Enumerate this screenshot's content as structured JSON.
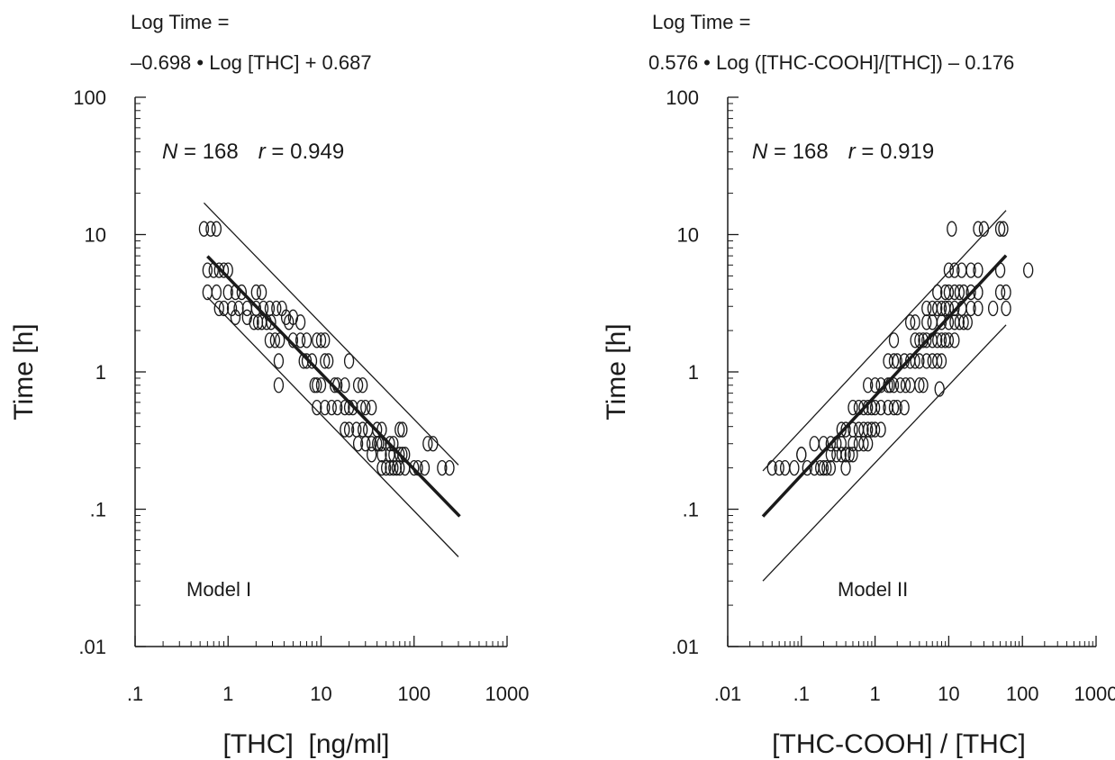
{
  "chart_data": [
    {
      "type": "scatter",
      "panel": "left",
      "equation_line1": "Log Time =",
      "equation_line2": "–0.698 • Log [THC] + 0.687",
      "stat_n_label": "N",
      "stat_n_value": " = 168",
      "stat_r_label": "r",
      "stat_r_value": " = 0.949",
      "model_label": "Model I",
      "xlabel": "[THC]  [ng/ml]",
      "ylabel": "Time [h]",
      "x_scale": "log",
      "y_scale": "log",
      "xlim": [
        0.1,
        1000
      ],
      "ylim": [
        0.01,
        100
      ],
      "x_ticks": [
        {
          "v": 0.1,
          "label": ".1"
        },
        {
          "v": 1,
          "label": "1"
        },
        {
          "v": 10,
          "label": "10"
        },
        {
          "v": 100,
          "label": "100"
        },
        {
          "v": 1000,
          "label": "1000"
        }
      ],
      "y_ticks": [
        {
          "v": 0.01,
          "label": ".01"
        },
        {
          "v": 0.1,
          "label": ".1"
        },
        {
          "v": 1,
          "label": "1"
        },
        {
          "v": 10,
          "label": "10"
        },
        {
          "v": 100,
          "label": "100"
        }
      ],
      "regression": {
        "slope": -0.698,
        "intercept": 0.687,
        "x_range": [
          0.6,
          310
        ]
      },
      "prediction_bands": [
        {
          "name": "upper",
          "x_range": [
            0.55,
            300
          ],
          "y_range": [
            17,
            0.21
          ]
        },
        {
          "name": "lower",
          "x_range": [
            0.6,
            300
          ],
          "y_range": [
            3.5,
            0.045
          ]
        }
      ],
      "points": [
        [
          0.55,
          11
        ],
        [
          0.65,
          11
        ],
        [
          0.75,
          11
        ],
        [
          0.6,
          5.5
        ],
        [
          0.7,
          5.5
        ],
        [
          0.8,
          5.5
        ],
        [
          0.9,
          5.5
        ],
        [
          1.0,
          5.5
        ],
        [
          0.6,
          3.8
        ],
        [
          0.75,
          3.8
        ],
        [
          1.0,
          3.8
        ],
        [
          1.2,
          3.8
        ],
        [
          1.4,
          3.8
        ],
        [
          0.8,
          2.9
        ],
        [
          0.9,
          2.9
        ],
        [
          1.1,
          2.9
        ],
        [
          1.3,
          2.9
        ],
        [
          1.6,
          2.9
        ],
        [
          1.2,
          2.5
        ],
        [
          1.6,
          2.5
        ],
        [
          2.0,
          3.8
        ],
        [
          2.3,
          3.8
        ],
        [
          2.0,
          2.9
        ],
        [
          2.4,
          2.9
        ],
        [
          2.8,
          2.9
        ],
        [
          1.9,
          2.3
        ],
        [
          2.1,
          2.3
        ],
        [
          2.3,
          2.3
        ],
        [
          2.6,
          2.3
        ],
        [
          2.9,
          2.3
        ],
        [
          3.3,
          2.9
        ],
        [
          3.8,
          2.9
        ],
        [
          4.2,
          2.5
        ],
        [
          5.0,
          2.5
        ],
        [
          6.0,
          2.3
        ],
        [
          2.8,
          1.7
        ],
        [
          3.2,
          1.7
        ],
        [
          3.6,
          1.7
        ],
        [
          4.5,
          2.3
        ],
        [
          5.0,
          1.7
        ],
        [
          6.0,
          1.7
        ],
        [
          7.0,
          1.7
        ],
        [
          3.5,
          1.2
        ],
        [
          3.5,
          0.8
        ],
        [
          6.5,
          1.2
        ],
        [
          7.0,
          1.2
        ],
        [
          8.0,
          1.2
        ],
        [
          9.0,
          1.7
        ],
        [
          10.0,
          1.7
        ],
        [
          11.0,
          1.7
        ],
        [
          8.5,
          0.8
        ],
        [
          9.0,
          0.8
        ],
        [
          10.0,
          0.8
        ],
        [
          11.0,
          1.2
        ],
        [
          12.0,
          1.2
        ],
        [
          14.0,
          0.8
        ],
        [
          15.0,
          0.8
        ],
        [
          18.0,
          0.8
        ],
        [
          20.0,
          1.2
        ],
        [
          25.0,
          0.8
        ],
        [
          28.0,
          0.8
        ],
        [
          9.0,
          0.55
        ],
        [
          11.0,
          0.55
        ],
        [
          13.0,
          0.55
        ],
        [
          15.0,
          0.55
        ],
        [
          18.0,
          0.55
        ],
        [
          20.0,
          0.55
        ],
        [
          22.0,
          0.55
        ],
        [
          27.0,
          0.55
        ],
        [
          30.0,
          0.55
        ],
        [
          35.0,
          0.55
        ],
        [
          18.0,
          0.38
        ],
        [
          20.0,
          0.38
        ],
        [
          24.0,
          0.38
        ],
        [
          28.0,
          0.38
        ],
        [
          32.0,
          0.38
        ],
        [
          40.0,
          0.38
        ],
        [
          45.0,
          0.38
        ],
        [
          25.0,
          0.3
        ],
        [
          30.0,
          0.3
        ],
        [
          35.0,
          0.3
        ],
        [
          40.0,
          0.3
        ],
        [
          42.0,
          0.3
        ],
        [
          45.0,
          0.3
        ],
        [
          55.0,
          0.3
        ],
        [
          60.0,
          0.3
        ],
        [
          35.0,
          0.25
        ],
        [
          45.0,
          0.25
        ],
        [
          55.0,
          0.25
        ],
        [
          60.0,
          0.25
        ],
        [
          70.0,
          0.25
        ],
        [
          75.0,
          0.25
        ],
        [
          80.0,
          0.25
        ],
        [
          70.0,
          0.38
        ],
        [
          75.0,
          0.38
        ],
        [
          45.0,
          0.2
        ],
        [
          50.0,
          0.2
        ],
        [
          55.0,
          0.2
        ],
        [
          60.0,
          0.2
        ],
        [
          65.0,
          0.2
        ],
        [
          70.0,
          0.2
        ],
        [
          80.0,
          0.2
        ],
        [
          100.0,
          0.2
        ],
        [
          110.0,
          0.2
        ],
        [
          130.0,
          0.2
        ],
        [
          140.0,
          0.3
        ],
        [
          160.0,
          0.3
        ],
        [
          200.0,
          0.2
        ],
        [
          240.0,
          0.2
        ]
      ]
    },
    {
      "type": "scatter",
      "panel": "right",
      "equation_line1": "Log Time =",
      "equation_line2": "0.576 • Log ([THC-COOH]/[THC]) – 0.176",
      "stat_n_label": "N",
      "stat_n_value": " = 168",
      "stat_r_label": "r",
      "stat_r_value": " = 0.919",
      "model_label": "Model II",
      "xlabel": "[THC-COOH] / [THC]",
      "ylabel": "Time [h]",
      "x_scale": "log",
      "y_scale": "log",
      "xlim": [
        0.01,
        1000
      ],
      "ylim": [
        0.01,
        100
      ],
      "x_ticks": [
        {
          "v": 0.01,
          "label": ".01"
        },
        {
          "v": 0.1,
          "label": ".1"
        },
        {
          "v": 1,
          "label": "1"
        },
        {
          "v": 10,
          "label": "10"
        },
        {
          "v": 100,
          "label": "100"
        },
        {
          "v": 1000,
          "label": "1000"
        }
      ],
      "y_ticks": [
        {
          "v": 0.01,
          "label": ".01"
        },
        {
          "v": 0.1,
          "label": ".1"
        },
        {
          "v": 1,
          "label": "1"
        },
        {
          "v": 10,
          "label": "10"
        },
        {
          "v": 100,
          "label": "100"
        }
      ],
      "regression": {
        "slope": 0.576,
        "intercept": -0.176,
        "x_range": [
          0.03,
          60
        ]
      },
      "prediction_bands": [
        {
          "name": "upper",
          "x_range": [
            0.03,
            60
          ],
          "y_range": [
            0.19,
            15
          ]
        },
        {
          "name": "lower",
          "x_range": [
            0.03,
            60
          ],
          "y_range": [
            0.03,
            2.2
          ]
        }
      ],
      "points": [
        [
          0.04,
          0.2
        ],
        [
          0.05,
          0.2
        ],
        [
          0.06,
          0.2
        ],
        [
          0.08,
          0.2
        ],
        [
          0.1,
          0.25
        ],
        [
          0.12,
          0.2
        ],
        [
          0.15,
          0.2
        ],
        [
          0.18,
          0.2
        ],
        [
          0.2,
          0.2
        ],
        [
          0.22,
          0.2
        ],
        [
          0.25,
          0.2
        ],
        [
          0.1,
          0.25
        ],
        [
          0.15,
          0.3
        ],
        [
          0.2,
          0.3
        ],
        [
          0.25,
          0.3
        ],
        [
          0.3,
          0.3
        ],
        [
          0.35,
          0.3
        ],
        [
          0.4,
          0.2
        ],
        [
          0.25,
          0.25
        ],
        [
          0.3,
          0.25
        ],
        [
          0.35,
          0.25
        ],
        [
          0.4,
          0.25
        ],
        [
          0.45,
          0.25
        ],
        [
          0.5,
          0.25
        ],
        [
          0.35,
          0.38
        ],
        [
          0.4,
          0.38
        ],
        [
          0.5,
          0.38
        ],
        [
          0.6,
          0.38
        ],
        [
          0.7,
          0.38
        ],
        [
          0.8,
          0.38
        ],
        [
          0.9,
          0.38
        ],
        [
          1.0,
          0.38
        ],
        [
          1.2,
          0.38
        ],
        [
          0.5,
          0.3
        ],
        [
          0.6,
          0.3
        ],
        [
          0.7,
          0.3
        ],
        [
          0.8,
          0.3
        ],
        [
          0.5,
          0.55
        ],
        [
          0.6,
          0.55
        ],
        [
          0.7,
          0.55
        ],
        [
          0.8,
          0.55
        ],
        [
          0.9,
          0.55
        ],
        [
          1.0,
          0.55
        ],
        [
          1.2,
          0.55
        ],
        [
          1.5,
          0.55
        ],
        [
          1.8,
          0.55
        ],
        [
          2.0,
          0.55
        ],
        [
          2.5,
          0.55
        ],
        [
          0.8,
          0.8
        ],
        [
          1.0,
          0.8
        ],
        [
          1.2,
          0.8
        ],
        [
          1.5,
          0.8
        ],
        [
          1.6,
          0.8
        ],
        [
          1.8,
          0.8
        ],
        [
          2.2,
          0.8
        ],
        [
          2.6,
          0.8
        ],
        [
          3.0,
          0.8
        ],
        [
          4.0,
          0.8
        ],
        [
          4.5,
          0.8
        ],
        [
          7.5,
          0.75
        ],
        [
          1.5,
          1.2
        ],
        [
          1.8,
          1.2
        ],
        [
          2.0,
          1.2
        ],
        [
          2.5,
          1.2
        ],
        [
          3.0,
          1.2
        ],
        [
          3.5,
          1.2
        ],
        [
          4.0,
          1.2
        ],
        [
          5.0,
          1.2
        ],
        [
          6.0,
          1.2
        ],
        [
          7.0,
          1.2
        ],
        [
          8.0,
          1.2
        ],
        [
          1.8,
          1.7
        ],
        [
          3.5,
          1.7
        ],
        [
          4.0,
          1.7
        ],
        [
          4.5,
          1.7
        ],
        [
          5.0,
          1.7
        ],
        [
          6.0,
          1.7
        ],
        [
          7.0,
          1.7
        ],
        [
          8.0,
          1.7
        ],
        [
          9.0,
          1.7
        ],
        [
          10.0,
          1.7
        ],
        [
          12.0,
          1.7
        ],
        [
          3.0,
          2.3
        ],
        [
          3.5,
          2.3
        ],
        [
          5.0,
          2.3
        ],
        [
          6.0,
          2.3
        ],
        [
          8.0,
          2.3
        ],
        [
          10.0,
          2.3
        ],
        [
          12.0,
          2.3
        ],
        [
          14.0,
          2.3
        ],
        [
          16.0,
          2.3
        ],
        [
          18.0,
          2.3
        ],
        [
          5.0,
          2.9
        ],
        [
          6.0,
          2.9
        ],
        [
          7.0,
          2.9
        ],
        [
          8.0,
          2.9
        ],
        [
          9.0,
          2.9
        ],
        [
          10.0,
          2.9
        ],
        [
          12.0,
          2.9
        ],
        [
          15.0,
          2.9
        ],
        [
          20.0,
          2.9
        ],
        [
          25.0,
          2.9
        ],
        [
          40.0,
          2.9
        ],
        [
          60.0,
          2.9
        ],
        [
          7.0,
          3.8
        ],
        [
          9.0,
          3.8
        ],
        [
          10.0,
          3.8
        ],
        [
          12.0,
          3.8
        ],
        [
          14.0,
          3.8
        ],
        [
          16.0,
          3.8
        ],
        [
          20.0,
          3.8
        ],
        [
          25.0,
          3.8
        ],
        [
          50.0,
          3.8
        ],
        [
          60.0,
          3.8
        ],
        [
          10.0,
          5.5
        ],
        [
          12.0,
          5.5
        ],
        [
          15.0,
          5.5
        ],
        [
          20.0,
          5.5
        ],
        [
          25.0,
          5.5
        ],
        [
          50.0,
          5.5
        ],
        [
          120.0,
          5.5
        ],
        [
          11.0,
          11
        ],
        [
          25.0,
          11
        ],
        [
          30.0,
          11
        ],
        [
          50.0,
          11
        ],
        [
          55.0,
          11
        ]
      ]
    }
  ],
  "labels": {
    "left": {
      "eq1": "Log Time =",
      "eq2": "–0.698 • Log [THC] + 0.687"
    },
    "right": {
      "eq1": "Log Time =",
      "eq2": "0.576 • Log ([THC-COOH]/[THC]) – 0.176"
    }
  }
}
